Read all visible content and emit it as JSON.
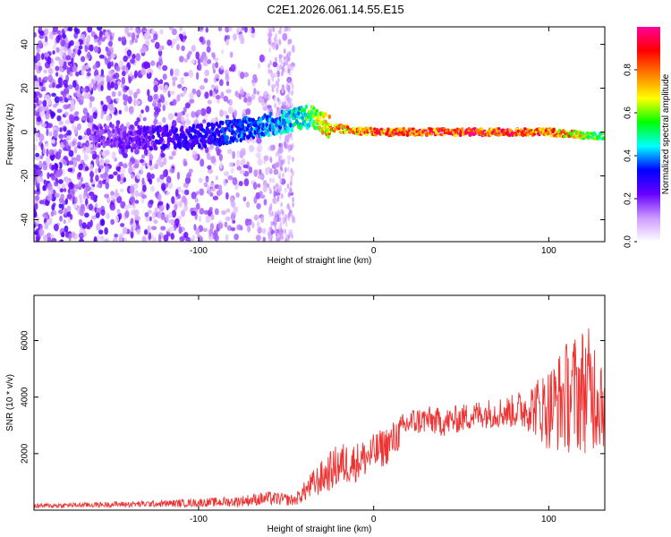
{
  "figure_title": "C2E1.2026.061.14.55.E15",
  "chart_data": [
    {
      "type": "heatmap",
      "name": "spectrogram",
      "title": "C2E1.2026.061.14.55.E15",
      "xlabel": "Height of straight line (km)",
      "ylabel": "Frequency (Hz)",
      "xlim": [
        -194,
        132
      ],
      "ylim": [
        -50,
        48
      ],
      "xticks": [
        -100,
        0,
        100
      ],
      "xtick_labels": [
        "-100",
        "0",
        "100"
      ],
      "yticks": [
        -40,
        -20,
        0,
        20,
        40
      ],
      "ytick_labels": [
        "-40",
        "-20",
        "0",
        "20",
        "40"
      ],
      "colorbar": {
        "label": "Normalized spectral amplitude",
        "range": [
          0.0,
          1.0
        ],
        "ticks": [
          0.0,
          0.2,
          0.4,
          0.6,
          0.8
        ],
        "tick_labels": [
          "0.0",
          "0.2",
          "0.4",
          "0.6",
          "0.8"
        ],
        "colors": [
          "#ffffff",
          "#cc99ff",
          "#6600ff",
          "#0000ff",
          "#00ffff",
          "#00ff00",
          "#ffff00",
          "#ff8000",
          "#ff0000",
          "#ff0099"
        ]
      },
      "signal_track": [
        {
          "x": -150,
          "y": -2,
          "amp": 0.2
        },
        {
          "x": -110,
          "y": -3,
          "amp": 0.3
        },
        {
          "x": -90,
          "y": -1,
          "amp": 0.35
        },
        {
          "x": -70,
          "y": 2,
          "amp": 0.4
        },
        {
          "x": -50,
          "y": 5,
          "amp": 0.45
        },
        {
          "x": -35,
          "y": 7,
          "amp": 0.6
        },
        {
          "x": -25,
          "y": 2,
          "amp": 0.8
        },
        {
          "x": 0,
          "y": 0,
          "amp": 0.9
        },
        {
          "x": 50,
          "y": 0,
          "amp": 0.95
        },
        {
          "x": 100,
          "y": 0,
          "amp": 0.9
        },
        {
          "x": 130,
          "y": -2,
          "amp": 0.6
        }
      ]
    },
    {
      "type": "line",
      "name": "snr",
      "xlabel": "Height of straight line (km)",
      "ylabel": "SNR (10 * v/v)",
      "xlim": [
        -194,
        132
      ],
      "ylim": [
        0,
        7600
      ],
      "xticks": [
        -100,
        0,
        100
      ],
      "xtick_labels": [
        "-100",
        "0",
        "100"
      ],
      "yticks": [
        2000,
        4000,
        6000
      ],
      "ytick_labels": [
        "2000",
        "4000",
        "6000"
      ],
      "color": "#ee3333",
      "series": [
        {
          "name": "SNR",
          "x": [
            -194,
            -150,
            -120,
            -80,
            -60,
            -45,
            -35,
            -20,
            -10,
            0,
            10,
            20,
            30,
            40,
            60,
            80,
            90,
            100,
            110,
            120,
            132
          ],
          "values": [
            150,
            200,
            230,
            300,
            420,
            350,
            900,
            1600,
            1700,
            2000,
            2400,
            3100,
            3200,
            3100,
            3400,
            3500,
            3650,
            3600,
            4000,
            4300,
            4100
          ],
          "noise": [
            80,
            100,
            120,
            180,
            250,
            200,
            500,
            800,
            700,
            700,
            700,
            500,
            500,
            500,
            500,
            600,
            900,
            1500,
            2000,
            2300,
            2000
          ]
        }
      ]
    }
  ]
}
